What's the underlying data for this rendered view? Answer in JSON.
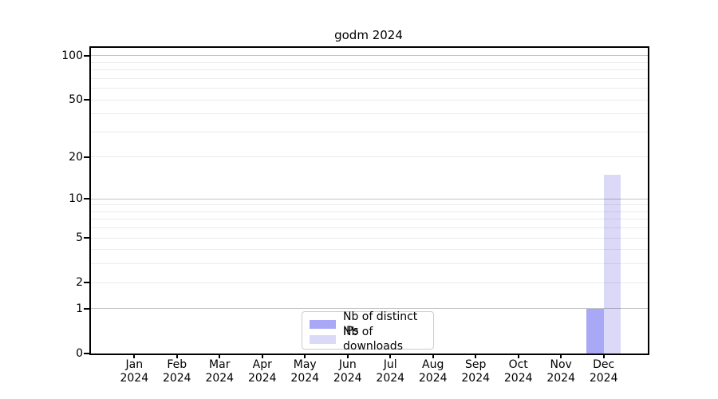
{
  "title": "godm 2024",
  "legend": {
    "position": "lower center",
    "items": [
      {
        "label": "Nb of distinct IPs",
        "color": "#a8a8f6"
      },
      {
        "label": "Nb of downloads",
        "color": "#dadaf8"
      }
    ]
  },
  "chart_data": {
    "type": "bar",
    "title": "godm 2024",
    "categories": [
      "Jan 2024",
      "Feb 2024",
      "Mar 2024",
      "Apr 2024",
      "May 2024",
      "Jun 2024",
      "Jul 2024",
      "Aug 2024",
      "Sep 2024",
      "Oct 2024",
      "Nov 2024",
      "Dec 2024"
    ],
    "months": [
      "Jan",
      "Feb",
      "Mar",
      "Apr",
      "May",
      "Jun",
      "Jul",
      "Aug",
      "Sep",
      "Oct",
      "Nov",
      "Dec"
    ],
    "year": "2024",
    "series": [
      {
        "name": "Nb of distinct IPs",
        "color": "#a8a8f6",
        "values": [
          0,
          0,
          0,
          0,
          0,
          0,
          0,
          0,
          0,
          0,
          0,
          1
        ]
      },
      {
        "name": "Nb of downloads",
        "color": "#dadaf8",
        "values": [
          0,
          0,
          0,
          0,
          0,
          0,
          0,
          0,
          0,
          0,
          0,
          15
        ]
      }
    ],
    "y_scale": "log1p",
    "y_axis": {
      "ticks": [
        0,
        1,
        2,
        5,
        10,
        20,
        50,
        100
      ],
      "minor_gridlines": [
        2,
        3,
        4,
        5,
        6,
        7,
        8,
        9,
        20,
        30,
        40,
        50,
        60,
        70,
        80,
        90
      ],
      "major_gridlines": [
        1,
        10,
        100
      ],
      "top_value": 113
    },
    "xlabel": "",
    "ylabel": "",
    "grid": {
      "major_color": "#c3c3c3",
      "minor_color": "#ebebeb"
    },
    "axis_color": "#000000",
    "legend_position": "lower center"
  }
}
